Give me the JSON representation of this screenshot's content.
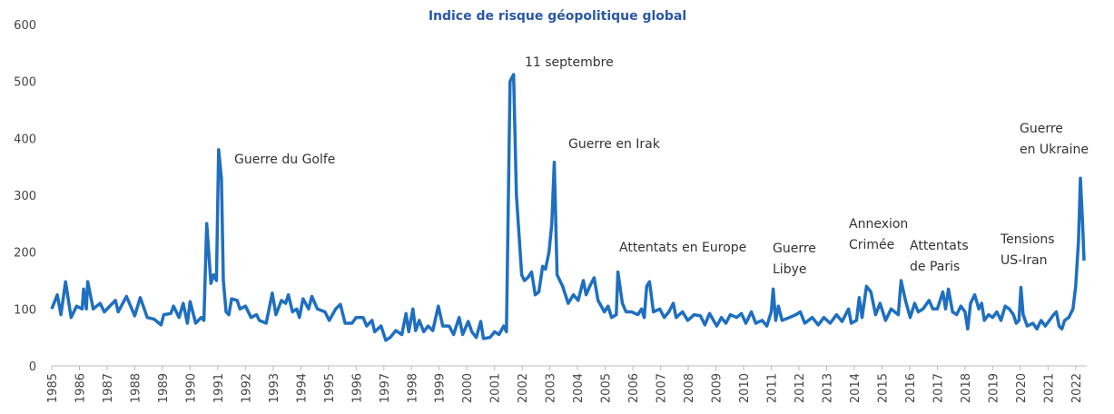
{
  "chart_data": {
    "type": "line",
    "title": "Indice de risque géopolitique global",
    "color": "#1f6fc0",
    "xlim": [
      1985,
      2022.4
    ],
    "xticks": [
      1985,
      1986,
      1987,
      1988,
      1989,
      1990,
      1991,
      1992,
      1993,
      1994,
      1995,
      1996,
      1997,
      1998,
      1999,
      2000,
      2001,
      2002,
      2003,
      2004,
      2005,
      2006,
      2007,
      2008,
      2009,
      2010,
      2011,
      2012,
      2013,
      2014,
      2015,
      2016,
      2017,
      2018,
      2019,
      2020,
      2021,
      2022
    ],
    "ylim": [
      0,
      600
    ],
    "yticks": [
      0,
      100,
      200,
      300,
      400,
      500,
      600
    ],
    "x": [
      1985.0,
      1985.2,
      1985.33,
      1985.5,
      1985.7,
      1985.9,
      1986.1,
      1986.15,
      1986.25,
      1986.3,
      1986.5,
      1986.75,
      1986.9,
      1987.3,
      1987.4,
      1987.7,
      1988.0,
      1988.2,
      1988.45,
      1988.7,
      1988.95,
      1989.05,
      1989.3,
      1989.4,
      1989.6,
      1989.75,
      1989.9,
      1990.0,
      1990.2,
      1990.4,
      1990.5,
      1990.6,
      1990.75,
      1990.85,
      1990.95,
      1991.03,
      1991.13,
      1991.2,
      1991.3,
      1991.4,
      1991.5,
      1991.7,
      1991.8,
      1992.0,
      1992.2,
      1992.4,
      1992.5,
      1992.75,
      1992.97,
      1993.1,
      1993.3,
      1993.45,
      1993.55,
      1993.7,
      1993.85,
      1993.95,
      1994.08,
      1994.28,
      1994.4,
      1994.6,
      1994.87,
      1995.03,
      1995.26,
      1995.43,
      1995.6,
      1995.85,
      1996.0,
      1996.25,
      1996.38,
      1996.57,
      1996.67,
      1996.9,
      1997.07,
      1997.23,
      1997.43,
      1997.65,
      1997.8,
      1997.9,
      1998.05,
      1998.15,
      1998.28,
      1998.44,
      1998.6,
      1998.77,
      1998.97,
      1999.13,
      1999.36,
      1999.52,
      1999.72,
      1999.85,
      2000.05,
      2000.18,
      2000.34,
      2000.5,
      2000.6,
      2000.84,
      2001.0,
      2001.16,
      2001.33,
      2001.43,
      2001.56,
      2001.69,
      2001.79,
      2001.98,
      2002.08,
      2002.2,
      2002.34,
      2002.47,
      2002.6,
      2002.74,
      2002.84,
      2002.97,
      2003.07,
      2003.16,
      2003.26,
      2003.46,
      2003.66,
      2003.85,
      2004.02,
      2004.21,
      2004.31,
      2004.44,
      2004.6,
      2004.74,
      2004.97,
      2005.1,
      2005.23,
      2005.4,
      2005.46,
      2005.62,
      2005.75,
      2005.95,
      2006.18,
      2006.31,
      2006.41,
      2006.5,
      2006.6,
      2006.74,
      2006.97,
      2007.13,
      2007.3,
      2007.46,
      2007.56,
      2007.79,
      2007.98,
      2008.21,
      2008.44,
      2008.6,
      2008.77,
      2009.03,
      2009.2,
      2009.36,
      2009.52,
      2009.75,
      2009.92,
      2010.08,
      2010.28,
      2010.44,
      2010.67,
      2010.84,
      2011.0,
      2011.07,
      2011.16,
      2011.26,
      2011.39,
      2011.66,
      2011.89,
      2012.05,
      2012.21,
      2012.48,
      2012.7,
      2012.9,
      2013.13,
      2013.36,
      2013.56,
      2013.79,
      2013.89,
      2014.08,
      2014.18,
      2014.28,
      2014.44,
      2014.6,
      2014.77,
      2014.93,
      2015.13,
      2015.33,
      2015.46,
      2015.59,
      2015.69,
      2015.85,
      2016.02,
      2016.18,
      2016.31,
      2016.48,
      2016.7,
      2016.84,
      2017.0,
      2017.2,
      2017.3,
      2017.4,
      2017.55,
      2017.7,
      2017.85,
      2018.0,
      2018.1,
      2018.2,
      2018.35,
      2018.5,
      2018.6,
      2018.7,
      2018.85,
      2019.0,
      2019.15,
      2019.3,
      2019.45,
      2019.6,
      2019.75,
      2019.85,
      2019.95,
      2020.02,
      2020.1,
      2020.25,
      2020.45,
      2020.6,
      2020.75,
      2020.9,
      2021.05,
      2021.2,
      2021.3,
      2021.4,
      2021.5,
      2021.6,
      2021.75,
      2021.9,
      2022.0,
      2022.1,
      2022.17,
      2022.25,
      2022.3
    ],
    "values": [
      100,
      125,
      90,
      148,
      85,
      105,
      100,
      135,
      100,
      148,
      100,
      110,
      95,
      115,
      95,
      122,
      88,
      120,
      85,
      82,
      72,
      90,
      92,
      105,
      85,
      110,
      75,
      113,
      75,
      85,
      80,
      250,
      145,
      160,
      150,
      380,
      330,
      150,
      95,
      90,
      118,
      115,
      100,
      105,
      85,
      90,
      80,
      75,
      128,
      90,
      115,
      110,
      125,
      95,
      100,
      85,
      118,
      100,
      122,
      100,
      95,
      80,
      100,
      108,
      75,
      75,
      85,
      85,
      70,
      80,
      60,
      70,
      45,
      50,
      62,
      55,
      92,
      60,
      100,
      62,
      80,
      60,
      70,
      62,
      105,
      70,
      70,
      55,
      85,
      55,
      78,
      60,
      50,
      78,
      48,
      50,
      60,
      55,
      70,
      60,
      500,
      512,
      300,
      160,
      150,
      155,
      165,
      125,
      130,
      175,
      170,
      200,
      250,
      358,
      160,
      140,
      110,
      125,
      115,
      150,
      125,
      140,
      155,
      115,
      95,
      105,
      85,
      90,
      165,
      110,
      95,
      95,
      90,
      100,
      85,
      140,
      148,
      95,
      100,
      85,
      95,
      110,
      85,
      95,
      80,
      90,
      88,
      72,
      92,
      70,
      85,
      75,
      90,
      85,
      92,
      75,
      95,
      75,
      80,
      70,
      95,
      135,
      80,
      105,
      80,
      85,
      90,
      95,
      75,
      85,
      72,
      85,
      75,
      90,
      78,
      100,
      75,
      80,
      120,
      85,
      140,
      130,
      90,
      110,
      80,
      100,
      95,
      90,
      150,
      115,
      85,
      110,
      95,
      100,
      115,
      100,
      100,
      130,
      100,
      135,
      95,
      90,
      105,
      95,
      65,
      110,
      125,
      100,
      110,
      80,
      90,
      85,
      95,
      80,
      105,
      100,
      90,
      75,
      80,
      138,
      90,
      70,
      75,
      65,
      80,
      70,
      80,
      90,
      95,
      70,
      65,
      80,
      85,
      100,
      140,
      220,
      330,
      250,
      185
    ],
    "annotations": [
      [
        "Guerre du Golfe"
      ],
      [
        "11 septembre"
      ],
      [
        "Guerre en Irak"
      ],
      [
        "Attentats en Europe"
      ],
      [
        "Guerre",
        "Libye"
      ],
      [
        "Annexion",
        "Crimée"
      ],
      [
        "Attentats",
        "de Paris"
      ],
      [
        "Tensions",
        "US-Iran"
      ],
      [
        "Guerre",
        "en Ukraine"
      ]
    ]
  }
}
